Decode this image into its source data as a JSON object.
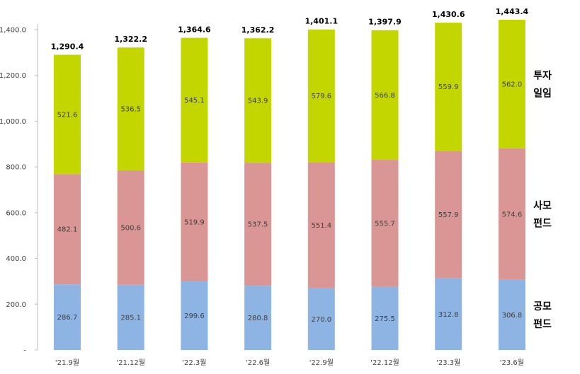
{
  "chart_data": {
    "type": "bar",
    "stacked": true,
    "categories": [
      "'21.9월",
      "'21.12월",
      "'22.3월",
      "'22.6월",
      "'22.9월",
      "'22.12월",
      "'23.3월",
      "'23.6월"
    ],
    "series": [
      {
        "name": "공모 펀드",
        "legend_lines": [
          "공모",
          "펀드"
        ],
        "color": "#8eb4e3",
        "values": [
          286.7,
          285.1,
          299.6,
          280.8,
          270.0,
          275.5,
          312.8,
          306.8
        ]
      },
      {
        "name": "사모 펀드",
        "legend_lines": [
          "사모",
          "펀드"
        ],
        "color": "#d99694",
        "values": [
          482.1,
          500.6,
          519.9,
          537.5,
          551.4,
          555.7,
          557.9,
          574.6
        ]
      },
      {
        "name": "투자 일임",
        "legend_lines": [
          "투자",
          "일임"
        ],
        "color": "#c3d600",
        "values": [
          521.6,
          536.5,
          545.1,
          543.9,
          579.6,
          566.8,
          559.9,
          562.0
        ]
      }
    ],
    "totals": [
      "1,290.4",
      "1,322.2",
      "1,364.6",
      "1,362.2",
      "1,401.1",
      "1,397.9",
      "1,430.6",
      "1,443.4"
    ],
    "y_ticks": [
      "-",
      "200.0",
      "400.0",
      "600.0",
      "800.0",
      "1,000.0",
      "1,200.0",
      "1,400.0"
    ],
    "ylim": [
      0,
      1400
    ],
    "title": "",
    "xlabel": "",
    "ylabel": "",
    "grid": false,
    "legend_position": "right"
  }
}
